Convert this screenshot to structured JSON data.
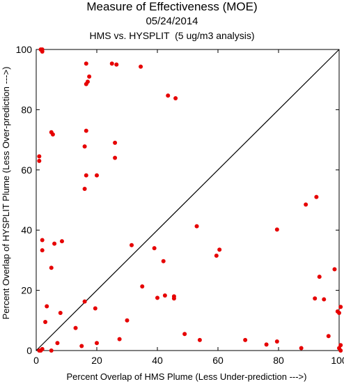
{
  "chart_data": {
    "type": "scatter",
    "title": "Measure of Effectiveness (MOE)",
    "subtitle_date": "05/24/2014",
    "subtitle": "HMS vs. HYSPLIT  (5 ug/m3 analysis)",
    "xlabel": "Percent Overlap of HMS Plume (Less Under-prediction --->)",
    "ylabel": "Percent Overlap of HYSPLIT Plume (Less Over-prediction --->)",
    "xlim": [
      0,
      100
    ],
    "ylim": [
      0,
      100
    ],
    "x_ticks": [
      0,
      20,
      40,
      60,
      80,
      100
    ],
    "y_ticks": [
      0,
      20,
      40,
      60,
      80,
      100
    ],
    "reference_line": "y = x",
    "grid": false,
    "point_color": "#e60000",
    "points": [
      [
        1.0,
        0.0
      ],
      [
        1.5,
        0.0
      ],
      [
        2.0,
        0.5
      ],
      [
        5.0,
        0.0
      ],
      [
        7.0,
        2.5
      ],
      [
        15.0,
        1.5
      ],
      [
        20.0,
        2.5
      ],
      [
        27.5,
        3.8
      ],
      [
        49.0,
        5.5
      ],
      [
        54.0,
        3.5
      ],
      [
        69.0,
        3.5
      ],
      [
        76.0,
        2.0
      ],
      [
        79.5,
        3.0
      ],
      [
        87.5,
        0.8
      ],
      [
        100.0,
        0.8
      ],
      [
        100.5,
        1.8
      ],
      [
        100.5,
        0.0
      ],
      [
        3.0,
        9.5
      ],
      [
        3.5,
        14.7
      ],
      [
        8.0,
        12.5
      ],
      [
        13.0,
        7.5
      ],
      [
        16.0,
        16.3
      ],
      [
        19.5,
        14.0
      ],
      [
        30.0,
        10.0
      ],
      [
        35.0,
        21.3
      ],
      [
        40.0,
        17.5
      ],
      [
        42.0,
        29.7
      ],
      [
        42.5,
        18.3
      ],
      [
        45.5,
        18.0
      ],
      [
        45.5,
        17.3
      ],
      [
        59.5,
        31.5
      ],
      [
        60.5,
        33.5
      ],
      [
        92.0,
        17.3
      ],
      [
        93.5,
        24.5
      ],
      [
        95.0,
        17.0
      ],
      [
        96.5,
        4.8
      ],
      [
        98.5,
        27.0
      ],
      [
        99.5,
        13.0
      ],
      [
        100.0,
        12.5
      ],
      [
        100.5,
        14.5
      ],
      [
        2.0,
        36.7
      ],
      [
        2.0,
        33.3
      ],
      [
        5.0,
        27.5
      ],
      [
        6.0,
        35.5
      ],
      [
        8.5,
        36.3
      ],
      [
        31.5,
        35.0
      ],
      [
        39.0,
        34.0
      ],
      [
        53.0,
        41.3
      ],
      [
        79.5,
        40.2
      ],
      [
        89.0,
        48.5
      ],
      [
        92.5,
        51.0
      ],
      [
        1.0,
        64.5
      ],
      [
        1.0,
        63.0
      ],
      [
        5.0,
        72.5
      ],
      [
        5.5,
        71.8
      ],
      [
        16.0,
        67.8
      ],
      [
        16.5,
        58.2
      ],
      [
        16.0,
        53.7
      ],
      [
        16.5,
        73.0
      ],
      [
        20.0,
        58.2
      ],
      [
        26.0,
        69.0
      ],
      [
        26.0,
        64.0
      ],
      [
        1.5,
        100.0
      ],
      [
        2.0,
        99.3
      ],
      [
        2.0,
        100.0
      ],
      [
        16.5,
        95.3
      ],
      [
        16.5,
        88.5
      ],
      [
        17.0,
        89.3
      ],
      [
        17.5,
        91.0
      ],
      [
        25.0,
        95.3
      ],
      [
        26.5,
        95.0
      ],
      [
        34.5,
        94.3
      ],
      [
        43.5,
        84.7
      ],
      [
        46.0,
        83.8
      ]
    ]
  }
}
